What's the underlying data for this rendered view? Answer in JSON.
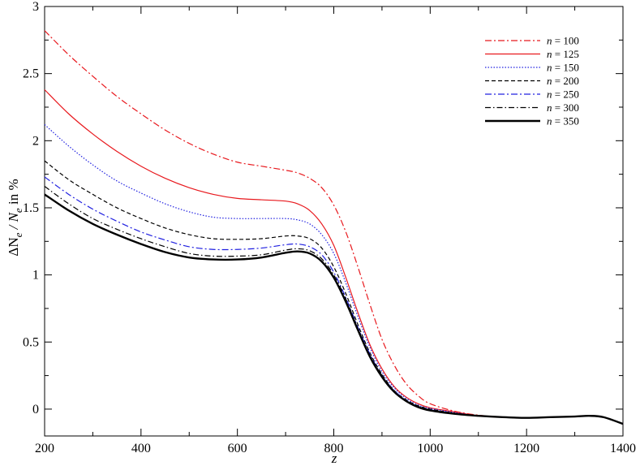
{
  "chart_data": {
    "type": "line",
    "title": "",
    "xlabel": "z",
    "ylabel_parts": [
      "ΔN",
      "e",
      " / N",
      "e",
      " in %"
    ],
    "xlim": [
      200,
      1400
    ],
    "ylim": [
      -0.2,
      3
    ],
    "xticks": [
      200,
      400,
      600,
      800,
      1000,
      1200,
      1400
    ],
    "yticks": [
      -0.0,
      0.5,
      1,
      1.5,
      2,
      2.5,
      3
    ],
    "ytick_labels": [
      "0",
      "0.5",
      "1",
      "1.5",
      "2",
      "2.5",
      "3"
    ],
    "grid": false,
    "legend_position": "top-right",
    "series": [
      {
        "name": "n = 100",
        "label_prefix": "n",
        "label_value": " = 100",
        "color": "#e8191e",
        "dash": "8,3,2,3",
        "width": 1.2,
        "x": [
          200,
          250,
          300,
          350,
          400,
          450,
          500,
          550,
          600,
          650,
          700,
          725,
          750,
          775,
          800,
          825,
          850,
          875,
          900,
          925,
          950,
          975,
          1000,
          1050,
          1100,
          1150,
          1200,
          1250,
          1300,
          1330,
          1360,
          1400
        ],
        "y": [
          2.82,
          2.64,
          2.48,
          2.33,
          2.2,
          2.08,
          1.98,
          1.9,
          1.84,
          1.81,
          1.78,
          1.76,
          1.72,
          1.65,
          1.52,
          1.32,
          1.06,
          0.78,
          0.52,
          0.33,
          0.19,
          0.1,
          0.04,
          -0.015,
          -0.045,
          -0.06,
          -0.065,
          -0.06,
          -0.055,
          -0.05,
          -0.06,
          -0.11
        ]
      },
      {
        "name": "n = 125",
        "label_prefix": "n",
        "label_value": " = 125",
        "color": "#e8191e",
        "dash": "",
        "width": 1.2,
        "x": [
          200,
          250,
          300,
          350,
          400,
          450,
          500,
          550,
          600,
          650,
          700,
          725,
          750,
          775,
          800,
          825,
          850,
          875,
          900,
          925,
          950,
          975,
          1000,
          1050,
          1100,
          1150,
          1200,
          1250,
          1300,
          1330,
          1360,
          1400
        ],
        "y": [
          2.38,
          2.2,
          2.05,
          1.92,
          1.81,
          1.72,
          1.65,
          1.6,
          1.57,
          1.56,
          1.55,
          1.53,
          1.48,
          1.38,
          1.22,
          0.98,
          0.72,
          0.48,
          0.3,
          0.17,
          0.09,
          0.04,
          0.01,
          -0.02,
          -0.05,
          -0.06,
          -0.065,
          -0.06,
          -0.055,
          -0.05,
          -0.06,
          -0.11
        ]
      },
      {
        "name": "n = 150",
        "label_prefix": "n",
        "label_value": " = 150",
        "color": "#2020e0",
        "dash": "1.5,2",
        "width": 1.2,
        "x": [
          200,
          250,
          300,
          350,
          400,
          450,
          500,
          550,
          600,
          650,
          700,
          725,
          750,
          775,
          800,
          825,
          850,
          875,
          900,
          925,
          950,
          975,
          1000,
          1050,
          1100,
          1150,
          1200,
          1250,
          1300,
          1330,
          1360,
          1400
        ],
        "y": [
          2.12,
          1.96,
          1.82,
          1.7,
          1.61,
          1.53,
          1.47,
          1.43,
          1.42,
          1.42,
          1.42,
          1.41,
          1.38,
          1.3,
          1.16,
          0.94,
          0.69,
          0.46,
          0.28,
          0.16,
          0.08,
          0.03,
          0.005,
          -0.025,
          -0.05,
          -0.06,
          -0.065,
          -0.06,
          -0.055,
          -0.05,
          -0.06,
          -0.11
        ]
      },
      {
        "name": "n = 200",
        "label_prefix": "n",
        "label_value": " = 200",
        "color": "#000000",
        "dash": "5,3",
        "width": 1.2,
        "x": [
          200,
          250,
          300,
          350,
          400,
          450,
          500,
          550,
          600,
          650,
          700,
          725,
          750,
          775,
          800,
          825,
          850,
          875,
          900,
          925,
          950,
          975,
          1000,
          1050,
          1100,
          1150,
          1200,
          1250,
          1300,
          1330,
          1360,
          1400
        ],
        "y": [
          1.85,
          1.71,
          1.6,
          1.5,
          1.42,
          1.35,
          1.3,
          1.27,
          1.265,
          1.27,
          1.29,
          1.29,
          1.27,
          1.2,
          1.06,
          0.86,
          0.63,
          0.42,
          0.26,
          0.14,
          0.07,
          0.025,
          0.0,
          -0.03,
          -0.05,
          -0.06,
          -0.065,
          -0.06,
          -0.055,
          -0.05,
          -0.06,
          -0.11
        ]
      },
      {
        "name": "n = 250",
        "label_prefix": "n",
        "label_value": " = 250",
        "color": "#2020e0",
        "dash": "8,3,2,3",
        "width": 1.2,
        "x": [
          200,
          250,
          300,
          350,
          400,
          450,
          500,
          550,
          600,
          650,
          700,
          725,
          750,
          775,
          800,
          825,
          850,
          875,
          900,
          925,
          950,
          975,
          1000,
          1050,
          1100,
          1150,
          1200,
          1250,
          1300,
          1330,
          1360,
          1400
        ],
        "y": [
          1.73,
          1.6,
          1.49,
          1.4,
          1.32,
          1.26,
          1.21,
          1.19,
          1.19,
          1.2,
          1.225,
          1.23,
          1.21,
          1.15,
          1.02,
          0.83,
          0.61,
          0.41,
          0.25,
          0.14,
          0.065,
          0.02,
          -0.005,
          -0.03,
          -0.05,
          -0.06,
          -0.065,
          -0.06,
          -0.055,
          -0.05,
          -0.06,
          -0.11
        ]
      },
      {
        "name": "n = 300",
        "label_prefix": "n",
        "label_value": " = 300",
        "color": "#000000",
        "dash": "7,3,1.5,3",
        "width": 1.2,
        "x": [
          200,
          250,
          300,
          350,
          400,
          450,
          500,
          550,
          600,
          650,
          700,
          725,
          750,
          775,
          800,
          825,
          850,
          875,
          900,
          925,
          950,
          975,
          1000,
          1050,
          1100,
          1150,
          1200,
          1250,
          1300,
          1330,
          1360,
          1400
        ],
        "y": [
          1.66,
          1.53,
          1.42,
          1.34,
          1.27,
          1.21,
          1.16,
          1.14,
          1.14,
          1.15,
          1.185,
          1.195,
          1.18,
          1.12,
          1.0,
          0.82,
          0.6,
          0.4,
          0.25,
          0.135,
          0.06,
          0.02,
          -0.005,
          -0.03,
          -0.05,
          -0.06,
          -0.065,
          -0.06,
          -0.055,
          -0.05,
          -0.06,
          -0.11
        ]
      },
      {
        "name": "n = 350",
        "label_prefix": "n",
        "label_value": " = 350",
        "color": "#000000",
        "dash": "",
        "width": 2.4,
        "x": [
          200,
          250,
          300,
          350,
          400,
          450,
          500,
          550,
          600,
          650,
          700,
          725,
          750,
          775,
          800,
          825,
          850,
          875,
          900,
          925,
          950,
          975,
          1000,
          1050,
          1100,
          1150,
          1200,
          1250,
          1300,
          1330,
          1360,
          1400
        ],
        "y": [
          1.6,
          1.48,
          1.38,
          1.3,
          1.23,
          1.17,
          1.13,
          1.115,
          1.115,
          1.13,
          1.165,
          1.175,
          1.16,
          1.1,
          0.98,
          0.8,
          0.59,
          0.39,
          0.24,
          0.13,
          0.06,
          0.015,
          -0.01,
          -0.035,
          -0.05,
          -0.06,
          -0.065,
          -0.06,
          -0.055,
          -0.05,
          -0.06,
          -0.11
        ]
      }
    ]
  }
}
